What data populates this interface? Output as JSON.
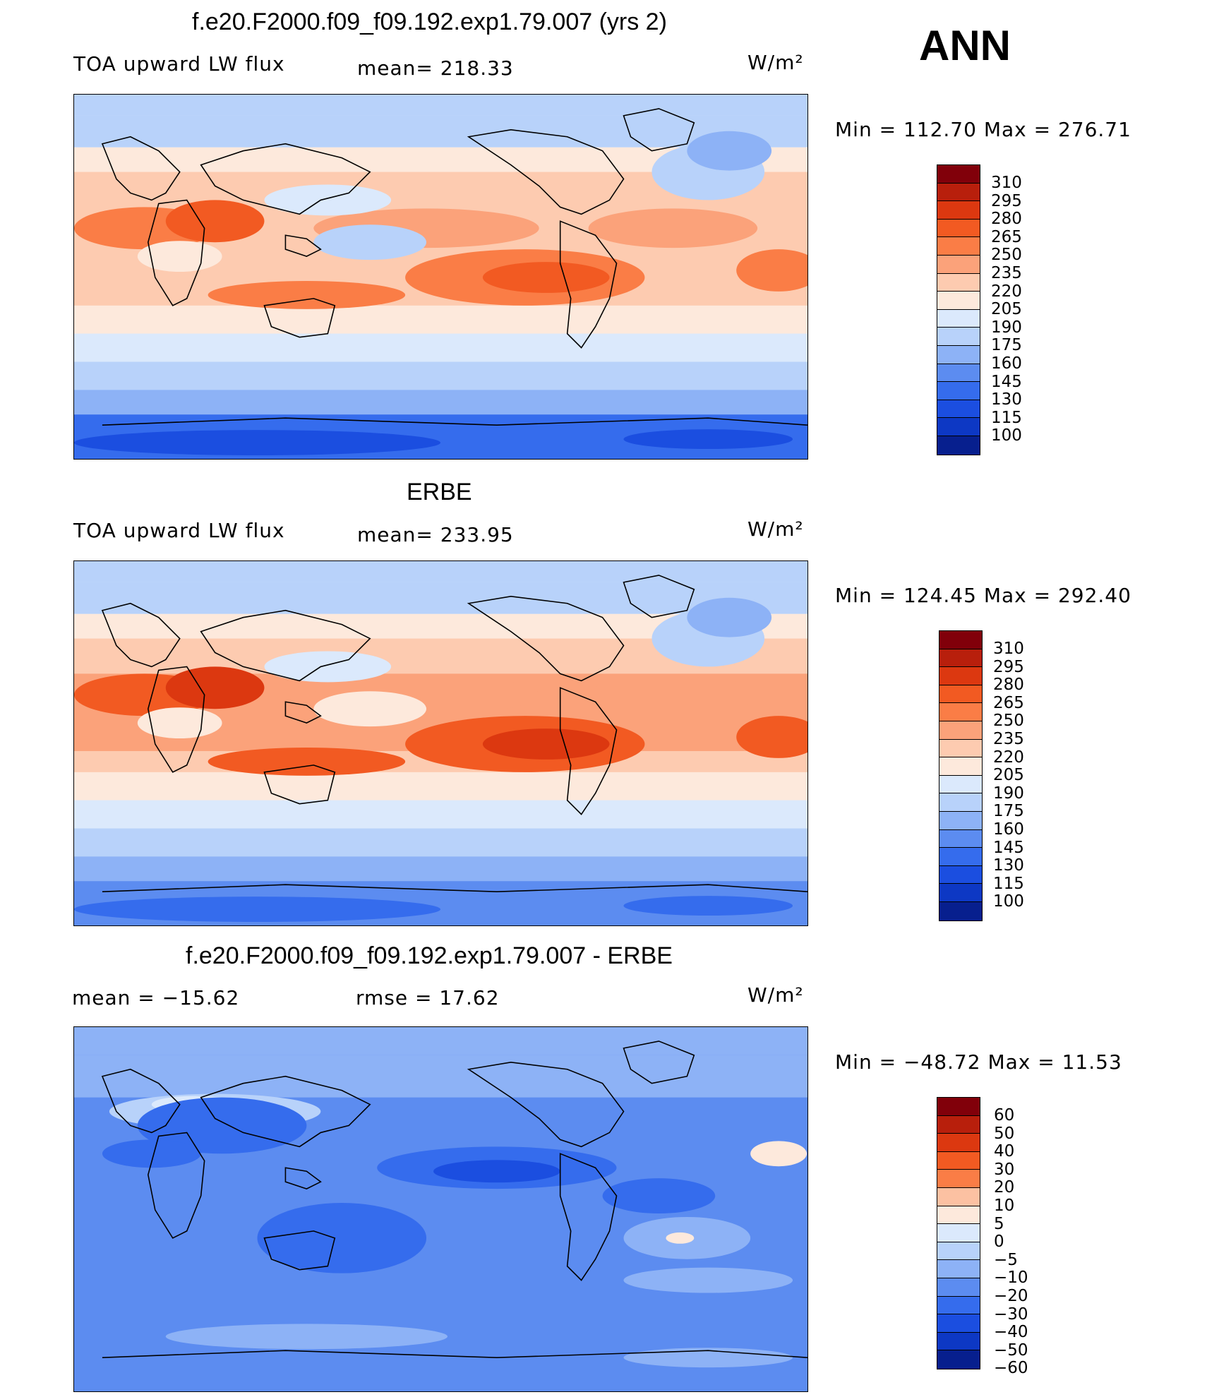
{
  "season": "ANN",
  "palette_abs": [
    "#81000a",
    "#b81f0c",
    "#dc3810",
    "#f25a22",
    "#fa7d46",
    "#fba27a",
    "#fdcbb0",
    "#fde9dc",
    "#dbe9fc",
    "#b8d2fa",
    "#8db2f6",
    "#5c8cf0",
    "#356ced",
    "#1b4ee0",
    "#0d38c4",
    "#071f8e"
  ],
  "palette_diff": [
    "#81000a",
    "#b81f0c",
    "#dc3810",
    "#f25a22",
    "#fa7d46",
    "#fcc1a2",
    "#fde9dc",
    "#dbe9fc",
    "#b8d2fa",
    "#8db2f6",
    "#5c8cf0",
    "#356ced",
    "#1b4ee0",
    "#0d38c4",
    "#071f8e"
  ],
  "panels": [
    {
      "title": "f.e20.F2000.f09_f09.192.exp1.79.007 (yrs 2)",
      "left_label": "TOA upward LW flux",
      "center_label": "mean= 218.33",
      "units": "W/m²",
      "minmax": "Min  =  112.70  Max  =  276.71",
      "levels": [
        "310",
        "295",
        "280",
        "265",
        "250",
        "235",
        "220",
        "205",
        "190",
        "175",
        "160",
        "145",
        "130",
        "115",
        "100"
      ],
      "kind": "model"
    },
    {
      "title": "ERBE",
      "left_label": "TOA upward LW flux",
      "center_label": "mean= 233.95",
      "units": "W/m²",
      "minmax": "Min  =  124.45  Max  =  292.40",
      "levels": [
        "310",
        "295",
        "280",
        "265",
        "250",
        "235",
        "220",
        "205",
        "190",
        "175",
        "160",
        "145",
        "130",
        "115",
        "100"
      ],
      "kind": "obs"
    },
    {
      "title": "f.e20.F2000.f09_f09.192.exp1.79.007 - ERBE",
      "left_label": "mean  =  −15.62",
      "center_label": "rmse  =    17.62",
      "units": "W/m²",
      "minmax": "Min  =  −48.72  Max  =    11.53",
      "levels": [
        "60",
        "50",
        "40",
        "30",
        "20",
        "10",
        "5",
        "0",
        "−5",
        "−10",
        "−20",
        "−30",
        "−40",
        "−50",
        "−60"
      ],
      "kind": "diff"
    }
  ]
}
